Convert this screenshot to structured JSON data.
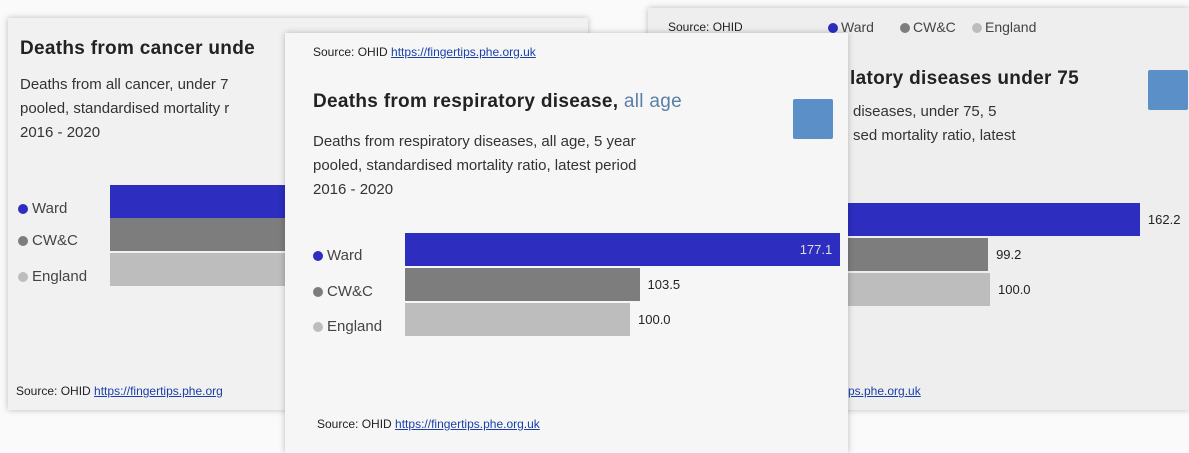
{
  "chart_data": [
    {
      "type": "bar",
      "title": "Deaths from cancer unde",
      "subtitle": [
        "Deaths from all cancer, under 7",
        "pooled, standardised mortality r",
        "2016 - 2020"
      ],
      "categories": [
        "Ward",
        "CW&C",
        "England"
      ],
      "colors": [
        "#2d2dbf",
        "#7d7d7d",
        "#bdbdbd"
      ],
      "source": "Source: OHID",
      "source_link": "https://fingertips.phe.org"
    },
    {
      "type": "bar",
      "source_top": "Source: OHID",
      "source_top_link": "https://fingertips.phe.org.uk",
      "title": "Deaths from respiratory disease,",
      "title_suffix": "all age",
      "subtitle": [
        "Deaths from respiratory diseases, all age, 5 year",
        "pooled, standardised mortality ratio, latest period",
        "2016 - 2020"
      ],
      "categories": [
        "Ward",
        "CW&C",
        "England"
      ],
      "values": [
        177.1,
        103.5,
        100
      ],
      "value_labels": [
        "177.1",
        "103.5",
        "100.0"
      ],
      "colors": [
        "#2d2dbf",
        "#7d7d7d",
        "#bdbdbd"
      ],
      "source": "Source: OHID",
      "source_link": "https://fingertips.phe.org.uk"
    },
    {
      "type": "bar",
      "source_top": "Source: OHID",
      "title": "latory diseases under 75",
      "subtitle": [
        "diseases, under 75, 5",
        "sed mortality ratio, latest"
      ],
      "categories": [
        "Ward",
        "CW&C",
        "England"
      ],
      "values": [
        162.2,
        99.2,
        100
      ],
      "value_labels": [
        "162.2",
        "99.2",
        "100.0"
      ],
      "colors": [
        "#2d2dbf",
        "#7d7d7d",
        "#bdbdbd"
      ],
      "source_link": "ps.phe.org.uk"
    }
  ]
}
